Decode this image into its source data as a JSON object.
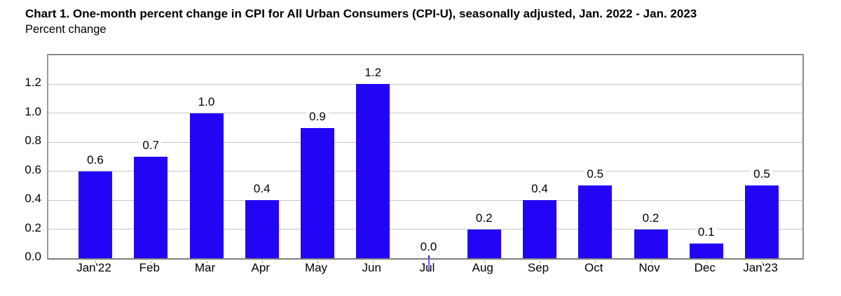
{
  "header": {
    "title": "Chart 1. One-month percent change in CPI for All Urban Consumers (CPI-U), seasonally adjusted, Jan. 2022 - Jan. 2023",
    "subtitle": "Percent change"
  },
  "chart_data": {
    "type": "bar",
    "title": "Chart 1. One-month percent change in CPI for All Urban Consumers (CPI-U), seasonally adjusted, Jan. 2022 - Jan. 2023",
    "subtitle": "Percent change",
    "categories": [
      "Jan'22",
      "Feb",
      "Mar",
      "Apr",
      "May",
      "Jun",
      "Jul",
      "Aug",
      "Sep",
      "Oct",
      "Nov",
      "Dec",
      "Jan'23"
    ],
    "values": [
      0.6,
      0.7,
      1.0,
      0.4,
      0.9,
      1.2,
      0.0,
      0.2,
      0.4,
      0.5,
      0.2,
      0.1,
      0.5
    ],
    "value_labels": [
      "0.6",
      "0.7",
      "1.0",
      "0.4",
      "0.9",
      "1.2",
      "0.0",
      "0.2",
      "0.4",
      "0.5",
      "0.2",
      "0.1",
      "0.5"
    ],
    "xlabel": "",
    "ylabel": "Percent change",
    "ylim": [
      0,
      1.4
    ],
    "yticks": [
      0.0,
      0.2,
      0.4,
      0.6,
      0.8,
      1.0,
      1.2
    ],
    "ytick_labels": [
      "0.0",
      "0.2",
      "0.4",
      "0.6",
      "0.8",
      "1.0",
      "1.2"
    ],
    "grid": true,
    "legend_position": "none",
    "colors": {
      "bar": "#2205F5",
      "zero_marker": "#6a5ff2",
      "gridline": "#c6c6c6",
      "frame": "#8b8b8b",
      "text": "#000000",
      "background": "#ffffff"
    }
  }
}
